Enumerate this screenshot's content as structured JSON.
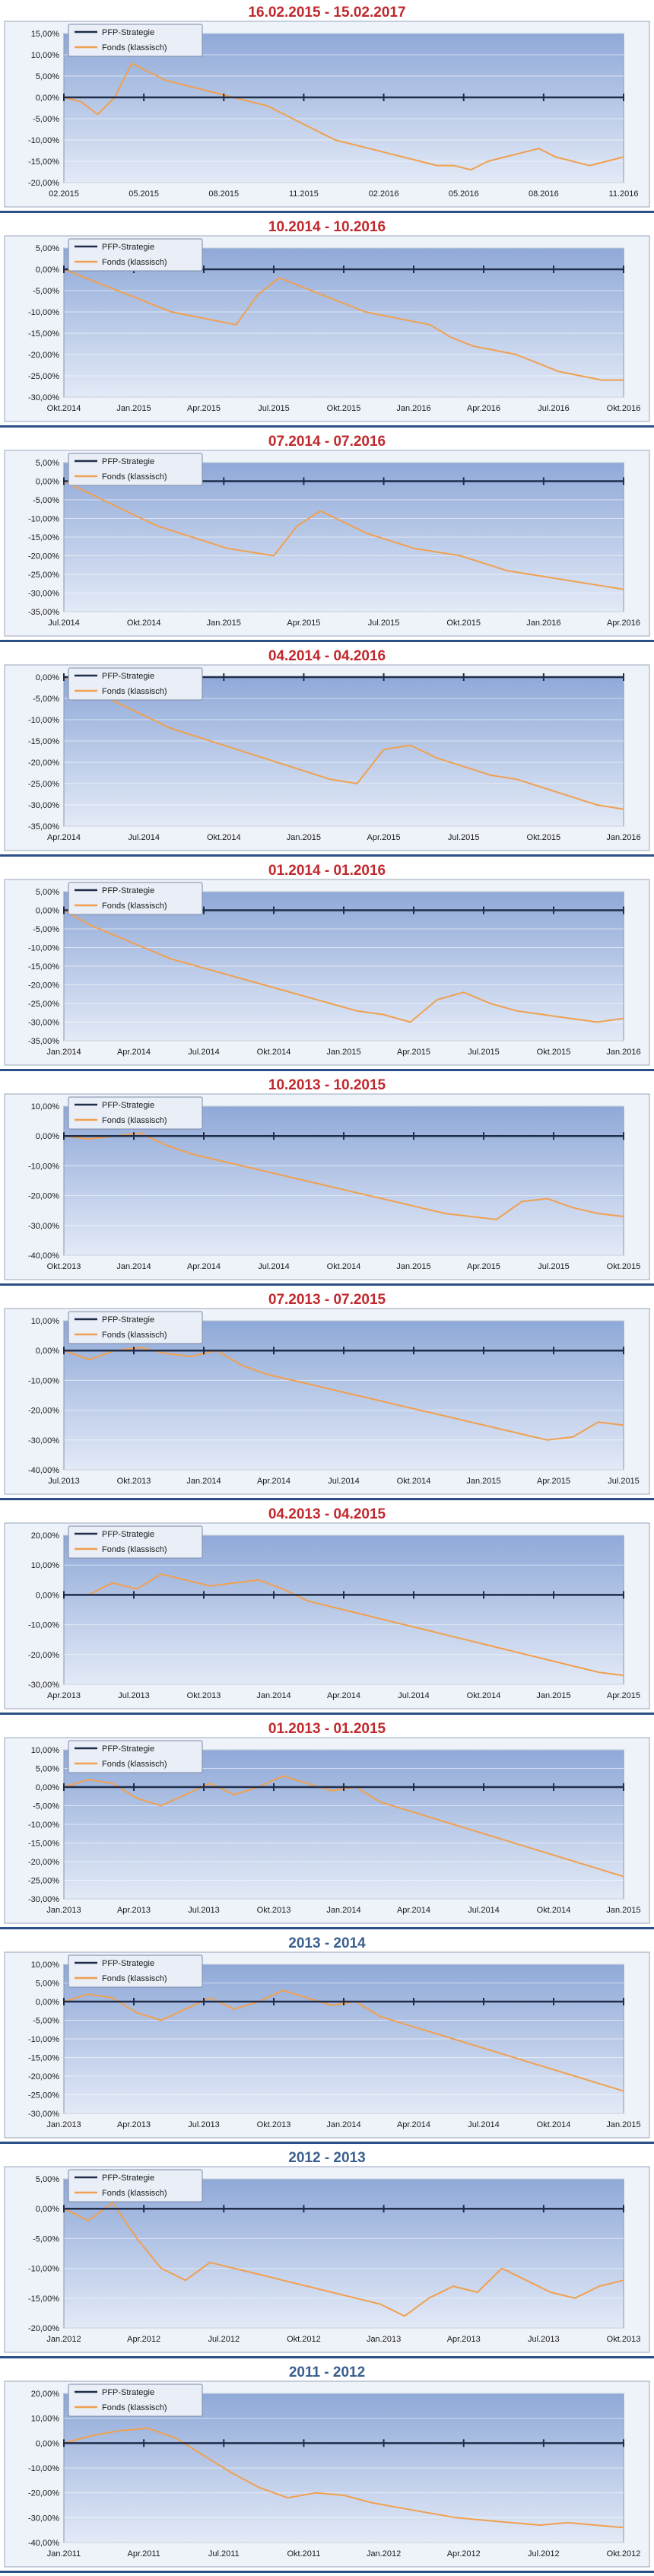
{
  "legend": {
    "strategy": "PFP-Strategie",
    "fund": "Fonds (klassisch)"
  },
  "colors": {
    "title_red": "#c0282d",
    "title_blue": "#3a5f8f",
    "strategy_line": "#1f2d4a",
    "fund_line": "#f0a050",
    "plot_top": "#8fa9d8",
    "plot_bottom": "#e3eaf7",
    "separator": "#2b4f86"
  },
  "chart_data": [
    {
      "type": "line",
      "title": "16.02.2015 - 15.02.2017",
      "title_color": "red",
      "yticks": [
        15,
        10,
        5,
        0,
        -5,
        -10,
        -15,
        -20
      ],
      "ylim": [
        -20,
        15
      ],
      "ylabel_decimals": 2,
      "xticks": [
        "02.2015",
        "05.2015",
        "08.2015",
        "11.2015",
        "02.2016",
        "05.2016",
        "08.2016",
        "11.2016"
      ],
      "series": [
        {
          "name": "PFP-Strategie",
          "values": [
            0,
            0
          ]
        },
        {
          "name": "Fonds (klassisch)",
          "values": [
            0,
            -1,
            -4,
            0,
            8,
            6,
            4,
            3,
            2,
            1,
            0,
            -1,
            -2,
            -4,
            -6,
            -8,
            -10,
            -11,
            -12,
            -13,
            -14,
            -15,
            -16,
            -16,
            -17,
            -15,
            -14,
            -13,
            -12,
            -14,
            -15,
            -16,
            -15,
            -14
          ]
        }
      ]
    },
    {
      "type": "line",
      "title": "10.2014 - 10.2016",
      "title_color": "red",
      "yticks": [
        5,
        0,
        -5,
        -10,
        -15,
        -20,
        -25,
        -30
      ],
      "ylim": [
        -30,
        5
      ],
      "ylabel_decimals": 2,
      "xticks": [
        "Okt.2014",
        "Jan.2015",
        "Apr.2015",
        "Jul.2015",
        "Okt.2015",
        "Jan.2016",
        "Apr.2016",
        "Jul.2016",
        "Okt.2016"
      ],
      "series": [
        {
          "name": "PFP-Strategie",
          "values": [
            0,
            0
          ]
        },
        {
          "name": "Fonds (klassisch)",
          "values": [
            0,
            -2,
            -4,
            -6,
            -8,
            -10,
            -11,
            -12,
            -13,
            -6,
            -2,
            -4,
            -6,
            -8,
            -10,
            -11,
            -12,
            -13,
            -16,
            -18,
            -19,
            -20,
            -22,
            -24,
            -25,
            -26,
            -26
          ]
        }
      ]
    },
    {
      "type": "line",
      "title": "07.2014 - 07.2016",
      "title_color": "red",
      "yticks": [
        5,
        0,
        -5,
        -10,
        -15,
        -20,
        -25,
        -30,
        -35
      ],
      "ylim": [
        -35,
        5
      ],
      "ylabel_decimals": 2,
      "xticks": [
        "Jul.2014",
        "Okt.2014",
        "Jan.2015",
        "Apr.2015",
        "Jul.2015",
        "Okt.2015",
        "Jan.2016",
        "Apr.2016"
      ],
      "series": [
        {
          "name": "PFP-Strategie",
          "values": [
            0,
            0
          ]
        },
        {
          "name": "Fonds (klassisch)",
          "values": [
            0,
            -3,
            -6,
            -9,
            -12,
            -14,
            -16,
            -18,
            -19,
            -20,
            -12,
            -8,
            -11,
            -14,
            -16,
            -18,
            -19,
            -20,
            -22,
            -24,
            -25,
            -26,
            -27,
            -28,
            -29
          ]
        }
      ]
    },
    {
      "type": "line",
      "title": "04.2014 - 04.2016",
      "title_color": "red",
      "yticks": [
        0,
        -5,
        -10,
        -15,
        -20,
        -25,
        -30,
        -35
      ],
      "ylim": [
        -35,
        0
      ],
      "ylabel_decimals": 2,
      "xticks": [
        "Apr.2014",
        "Jul.2014",
        "Okt.2014",
        "Jan.2015",
        "Apr.2015",
        "Jul.2015",
        "Okt.2015",
        "Jan.2016"
      ],
      "series": [
        {
          "name": "PFP-Strategie",
          "values": [
            0,
            0
          ]
        },
        {
          "name": "Fonds (klassisch)",
          "values": [
            0,
            -3,
            -6,
            -9,
            -12,
            -14,
            -16,
            -18,
            -20,
            -22,
            -24,
            -25,
            -17,
            -16,
            -19,
            -21,
            -23,
            -24,
            -26,
            -28,
            -30,
            -31
          ]
        }
      ]
    },
    {
      "type": "line",
      "title": "01.2014 - 01.2016",
      "title_color": "red",
      "yticks": [
        5,
        0,
        -5,
        -10,
        -15,
        -20,
        -25,
        -30,
        -35
      ],
      "ylim": [
        -35,
        5
      ],
      "ylabel_decimals": 2,
      "xticks": [
        "Jan.2014",
        "Apr.2014",
        "Jul.2014",
        "Okt.2014",
        "Jan.2015",
        "Apr.2015",
        "Jul.2015",
        "Okt.2015",
        "Jan.2016"
      ],
      "series": [
        {
          "name": "PFP-Strategie",
          "values": [
            0,
            0
          ]
        },
        {
          "name": "Fonds (klassisch)",
          "values": [
            0,
            -4,
            -7,
            -10,
            -13,
            -15,
            -17,
            -19,
            -21,
            -23,
            -25,
            -27,
            -28,
            -30,
            -24,
            -22,
            -25,
            -27,
            -28,
            -29,
            -30,
            -29
          ]
        }
      ]
    },
    {
      "type": "line",
      "title": "10.2013 - 10.2015",
      "title_color": "red",
      "yticks": [
        10,
        0,
        -10,
        -20,
        -30,
        -40
      ],
      "ylim": [
        -40,
        10
      ],
      "ylabel_decimals": 2,
      "xticks": [
        "Okt.2013",
        "Jan.2014",
        "Apr.2014",
        "Jul.2014",
        "Okt.2014",
        "Jan.2015",
        "Apr.2015",
        "Jul.2015",
        "Okt.2015"
      ],
      "series": [
        {
          "name": "PFP-Strategie",
          "values": [
            0,
            0
          ]
        },
        {
          "name": "Fonds (klassisch)",
          "values": [
            0,
            -1,
            0,
            1,
            -3,
            -6,
            -8,
            -10,
            -12,
            -14,
            -16,
            -18,
            -20,
            -22,
            -24,
            -26,
            -27,
            -28,
            -22,
            -21,
            -24,
            -26,
            -27
          ]
        }
      ]
    },
    {
      "type": "line",
      "title": "07.2013 - 07.2015",
      "title_color": "red",
      "yticks": [
        10,
        0,
        -10,
        -20,
        -30,
        -40
      ],
      "ylim": [
        -40,
        10
      ],
      "ylabel_decimals": 2,
      "xticks": [
        "Jul.2013",
        "Okt.2013",
        "Jan.2014",
        "Apr.2014",
        "Jul.2014",
        "Okt.2014",
        "Jan.2015",
        "Apr.2015",
        "Jul.2015"
      ],
      "series": [
        {
          "name": "PFP-Strategie",
          "values": [
            0,
            0
          ]
        },
        {
          "name": "Fonds (klassisch)",
          "values": [
            0,
            -3,
            0,
            1,
            -1,
            -2,
            0,
            -5,
            -8,
            -10,
            -12,
            -14,
            -16,
            -18,
            -20,
            -22,
            -24,
            -26,
            -28,
            -30,
            -29,
            -24,
            -25
          ]
        }
      ]
    },
    {
      "type": "line",
      "title": "04.2013 - 04.2015",
      "title_color": "red",
      "yticks": [
        20,
        10,
        0,
        -10,
        -20,
        -30
      ],
      "ylim": [
        -30,
        20
      ],
      "ylabel_decimals": 2,
      "xticks": [
        "Apr.2013",
        "Jul.2013",
        "Okt.2013",
        "Jan.2014",
        "Apr.2014",
        "Jul.2014",
        "Okt.2014",
        "Jan.2015",
        "Apr.2015"
      ],
      "series": [
        {
          "name": "PFP-Strategie",
          "values": [
            0,
            0
          ]
        },
        {
          "name": "Fonds (klassisch)",
          "values": [
            0,
            0,
            4,
            2,
            7,
            5,
            3,
            4,
            5,
            2,
            -2,
            -4,
            -6,
            -8,
            -10,
            -12,
            -14,
            -16,
            -18,
            -20,
            -22,
            -24,
            -26,
            -27
          ]
        }
      ]
    },
    {
      "type": "line",
      "title": "01.2013 - 01.2015",
      "title_color": "red",
      "yticks": [
        10,
        5,
        0,
        -5,
        -10,
        -15,
        -20,
        -25,
        -30
      ],
      "ylim": [
        -30,
        10
      ],
      "ylabel_decimals": 2,
      "xticks": [
        "Jan.2013",
        "Apr.2013",
        "Jul.2013",
        "Okt.2013",
        "Jan.2014",
        "Apr.2014",
        "Jul.2014",
        "Okt.2014",
        "Jan.2015"
      ],
      "series": [
        {
          "name": "PFP-Strategie",
          "values": [
            0,
            0
          ]
        },
        {
          "name": "Fonds (klassisch)",
          "values": [
            0,
            2,
            1,
            -3,
            -5,
            -2,
            1,
            -2,
            0,
            3,
            1,
            -1,
            0,
            -4,
            -6,
            -8,
            -10,
            -12,
            -14,
            -16,
            -18,
            -20,
            -22,
            -24
          ]
        }
      ]
    },
    {
      "type": "line",
      "title": "2013 - 2014",
      "title_color": "blue",
      "yticks": [
        10,
        5,
        0,
        -5,
        -10,
        -15,
        -20,
        -25,
        -30
      ],
      "ylim": [
        -30,
        10
      ],
      "ylabel_decimals": 2,
      "xticks": [
        "Jan.2013",
        "Apr.2013",
        "Jul.2013",
        "Okt.2013",
        "Jan.2014",
        "Apr.2014",
        "Jul.2014",
        "Okt.2014",
        "Jan.2015"
      ],
      "series": [
        {
          "name": "PFP-Strategie",
          "values": [
            0,
            0
          ]
        },
        {
          "name": "Fonds (klassisch)",
          "values": [
            0,
            2,
            1,
            -3,
            -5,
            -2,
            1,
            -2,
            0,
            3,
            1,
            -1,
            0,
            -4,
            -6,
            -8,
            -10,
            -12,
            -14,
            -16,
            -18,
            -20,
            -22,
            -24
          ]
        }
      ]
    },
    {
      "type": "line",
      "title": "2012 - 2013",
      "title_color": "blue",
      "yticks": [
        5,
        0,
        -5,
        -10,
        -15,
        -20
      ],
      "ylim": [
        -20,
        5
      ],
      "ylabel_decimals": 2,
      "xticks": [
        "Jan.2012",
        "Apr.2012",
        "Jul.2012",
        "Okt.2012",
        "Jan.2013",
        "Apr.2013",
        "Jul.2013",
        "Okt.2013"
      ],
      "series": [
        {
          "name": "PFP-Strategie",
          "values": [
            0,
            0
          ]
        },
        {
          "name": "Fonds (klassisch)",
          "values": [
            0,
            -2,
            1,
            -5,
            -10,
            -12,
            -9,
            -10,
            -11,
            -12,
            -13,
            -14,
            -15,
            -16,
            -18,
            -15,
            -13,
            -14,
            -10,
            -12,
            -14,
            -15,
            -13,
            -12
          ]
        }
      ]
    },
    {
      "type": "line",
      "title": "2011 - 2012",
      "title_color": "blue",
      "yticks": [
        20,
        10,
        0,
        -10,
        -20,
        -30,
        -40
      ],
      "ylim": [
        -40,
        20
      ],
      "ylabel_decimals": 2,
      "xticks": [
        "Jan.2011",
        "Apr.2011",
        "Jul.2011",
        "Okt.2011",
        "Jan.2012",
        "Apr.2012",
        "Jul.2012",
        "Okt.2012"
      ],
      "series": [
        {
          "name": "PFP-Strategie",
          "values": [
            0,
            0
          ]
        },
        {
          "name": "Fonds (klassisch)",
          "values": [
            0,
            3,
            5,
            6,
            2,
            -5,
            -12,
            -18,
            -22,
            -20,
            -21,
            -24,
            -26,
            -28,
            -30,
            -31,
            -32,
            -33,
            -32,
            -33,
            -34
          ]
        }
      ]
    }
  ]
}
